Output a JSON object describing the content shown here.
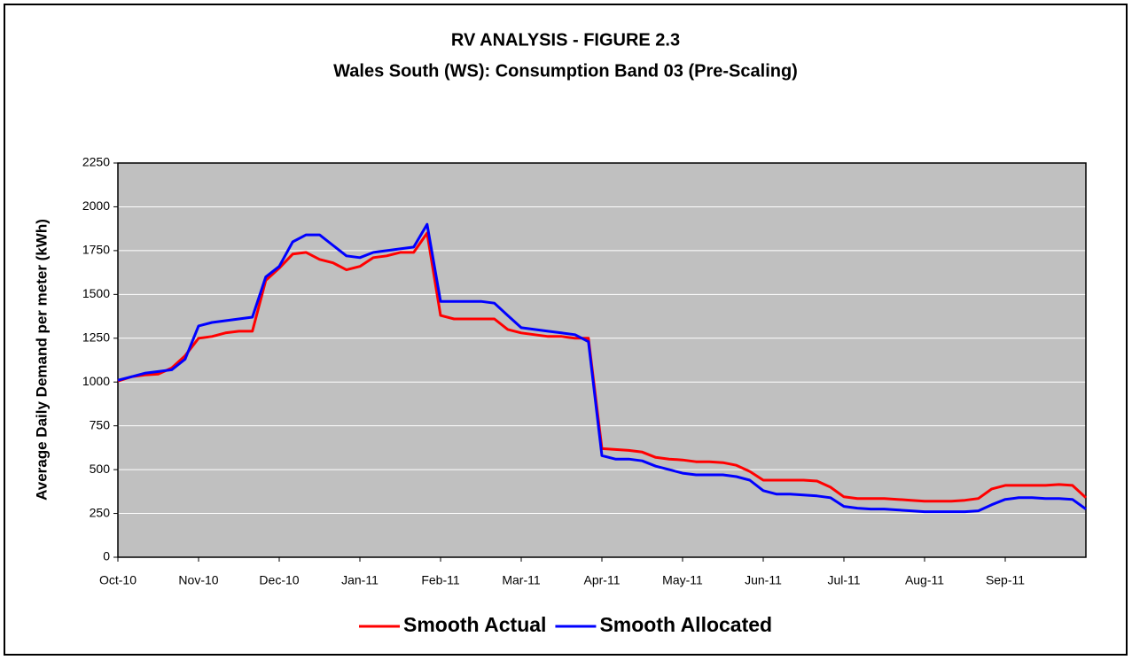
{
  "chart_data": {
    "type": "line",
    "title": "RV ANALYSIS - FIGURE 2.3",
    "subtitle": "Wales South (WS): Consumption Band 03 (Pre-Scaling)",
    "y_label": "Average Daily Demand per meter (kWh)",
    "categories": [
      "Oct-10",
      null,
      null,
      null,
      null,
      null,
      "Nov-10",
      null,
      null,
      null,
      null,
      null,
      "Dec-10",
      null,
      null,
      null,
      null,
      null,
      "Jan-11",
      null,
      null,
      null,
      null,
      null,
      "Feb-11",
      null,
      null,
      null,
      null,
      null,
      "Mar-11",
      null,
      null,
      null,
      null,
      null,
      "Apr-11",
      null,
      null,
      null,
      null,
      null,
      "May-11",
      null,
      null,
      null,
      null,
      null,
      "Jun-11",
      null,
      null,
      null,
      null,
      null,
      "Jul-11",
      null,
      null,
      null,
      null,
      null,
      "Aug-11",
      null,
      null,
      null,
      null,
      null,
      "Sep-11",
      null,
      null,
      null,
      null,
      null,
      null
    ],
    "series": [
      {
        "name": "Smooth Actual",
        "color": "#ff0000",
        "values": [
          1005,
          1030,
          1040,
          1045,
          1080,
          1150,
          1250,
          1260,
          1280,
          1290,
          1290,
          1580,
          1650,
          1730,
          1740,
          1700,
          1680,
          1640,
          1660,
          1710,
          1720,
          1740,
          1740,
          1850,
          1380,
          1360,
          1360,
          1360,
          1360,
          1300,
          1280,
          1270,
          1260,
          1260,
          1250,
          1250,
          620,
          615,
          610,
          600,
          570,
          560,
          555,
          545,
          545,
          540,
          525,
          490,
          440,
          440,
          440,
          440,
          435,
          400,
          345,
          335,
          335,
          335,
          330,
          325,
          320,
          320,
          320,
          325,
          335,
          390,
          410,
          410,
          410,
          410,
          415,
          410,
          340
        ]
      },
      {
        "name": "Smooth Allocated",
        "color": "#0000ff",
        "values": [
          1010,
          1030,
          1050,
          1060,
          1070,
          1130,
          1320,
          1340,
          1350,
          1360,
          1370,
          1600,
          1660,
          1800,
          1840,
          1840,
          1780,
          1720,
          1710,
          1740,
          1750,
          1760,
          1770,
          1900,
          1460,
          1460,
          1460,
          1460,
          1450,
          1380,
          1310,
          1300,
          1290,
          1280,
          1270,
          1230,
          580,
          560,
          560,
          550,
          520,
          500,
          480,
          470,
          470,
          470,
          460,
          440,
          380,
          360,
          360,
          355,
          350,
          340,
          290,
          280,
          275,
          275,
          270,
          265,
          260,
          260,
          260,
          260,
          265,
          300,
          330,
          340,
          340,
          335,
          335,
          330,
          275
        ]
      }
    ],
    "ylim": [
      0,
      2250
    ],
    "yticks": [
      0,
      250,
      500,
      750,
      1000,
      1250,
      1500,
      1750,
      2000,
      2250
    ],
    "grid": true,
    "legend": "bottom"
  }
}
